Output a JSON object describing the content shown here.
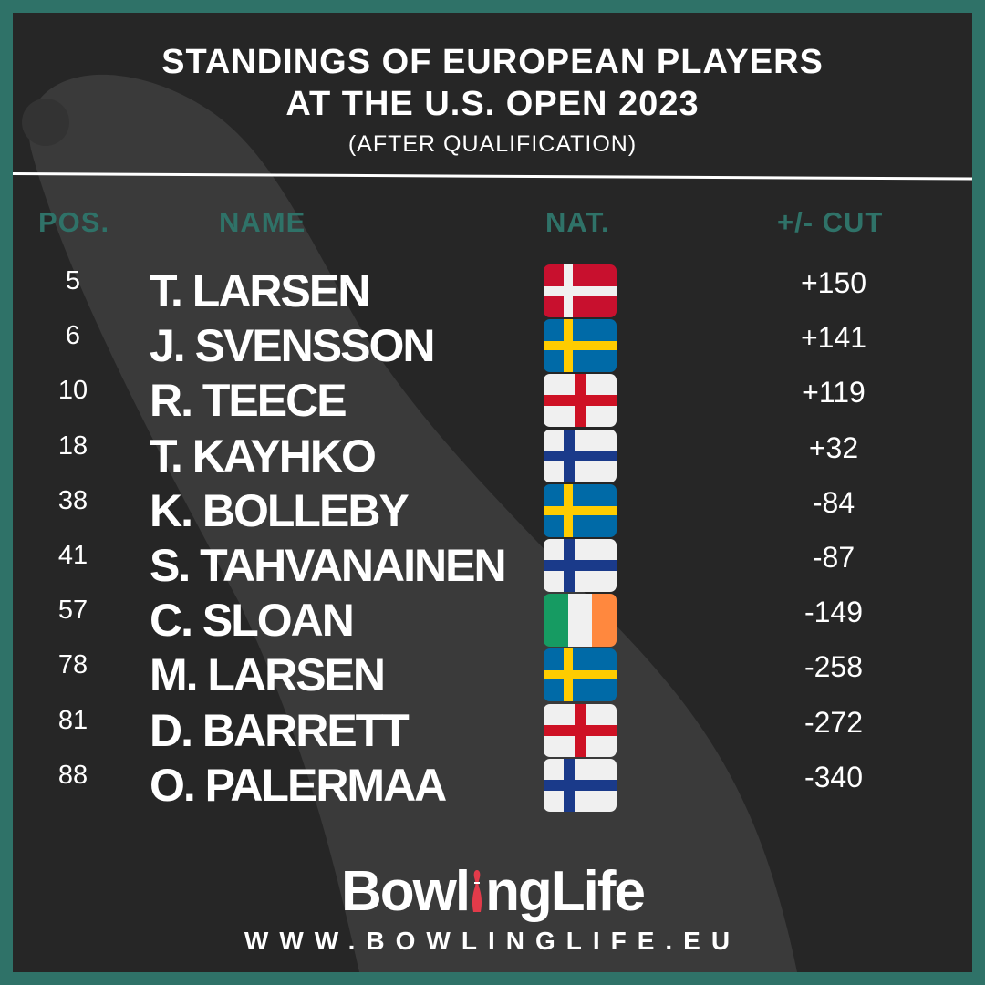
{
  "title_line1": "STANDINGS OF EUROPEAN PLAYERS",
  "title_line2": "AT THE U.S. OPEN 2023",
  "subtitle": "(AFTER QUALIFICATION)",
  "headers": {
    "pos": "POS.",
    "name": "NAME",
    "nat": "NAT.",
    "cut": "+/- CUT"
  },
  "rows": [
    {
      "pos": "5",
      "name": "T. LARSEN",
      "flag": "denmark-flag",
      "cut": "+150"
    },
    {
      "pos": "6",
      "name": "J. SVENSSON",
      "flag": "sweden-flag",
      "cut": "+141"
    },
    {
      "pos": "10",
      "name": "R. TEECE",
      "flag": "england-flag",
      "cut": "+119"
    },
    {
      "pos": "18",
      "name": "T. KAYHKO",
      "flag": "finland-flag",
      "cut": "+32"
    },
    {
      "pos": "38",
      "name": "K. BOLLEBY",
      "flag": "sweden-flag",
      "cut": "-84"
    },
    {
      "pos": "41",
      "name": "S. TAHVANAINEN",
      "flag": "finland-flag",
      "cut": "-87"
    },
    {
      "pos": "57",
      "name": "C. SLOAN",
      "flag": "ireland-flag",
      "cut": "-149"
    },
    {
      "pos": "78",
      "name": "M. LARSEN",
      "flag": "sweden-flag",
      "cut": "-258"
    },
    {
      "pos": "81",
      "name": "D. BARRETT",
      "flag": "england-flag",
      "cut": "-272"
    },
    {
      "pos": "88",
      "name": "O. PALERMAA",
      "flag": "finland-flag",
      "cut": "-340"
    }
  ],
  "logo": {
    "part1": "Bowl",
    "part2": "ngLife"
  },
  "url": "WWW.BOWLINGLIFE.EU",
  "colors": {
    "border": "#2f7268",
    "background": "#262626",
    "header_text": "#2f7268",
    "text": "#ffffff",
    "logo_accent": "#e23b4a"
  }
}
